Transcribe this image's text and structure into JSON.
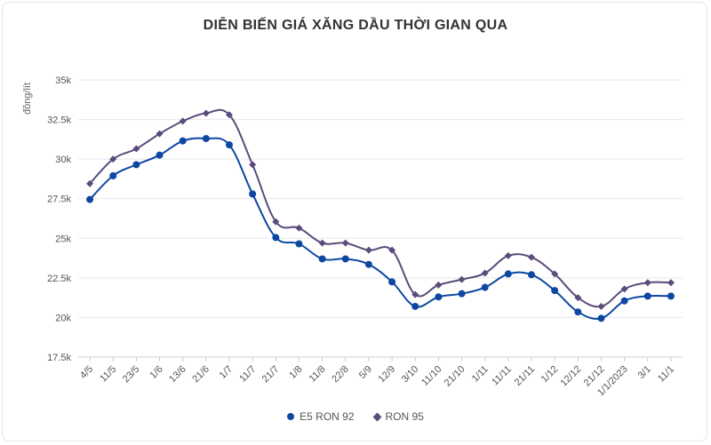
{
  "chart_data": {
    "type": "line",
    "title": "DIỄN BIẾN GIÁ XĂNG DẦU THỜI GIAN QUA",
    "ylabel": "đồng/lít",
    "xlabel": "",
    "ylim": [
      17500,
      35000
    ],
    "yticks": [
      17500,
      20000,
      22500,
      25000,
      27500,
      30000,
      32500,
      35000
    ],
    "ytick_labels": [
      "17.5k",
      "20k",
      "22.5k",
      "25k",
      "27.5k",
      "30k",
      "32.5k",
      "35k"
    ],
    "categories": [
      "4/5",
      "11/5",
      "23/5",
      "1/6",
      "13/6",
      "21/6",
      "1/7",
      "11/7",
      "21/7",
      "1/8",
      "11/8",
      "22/8",
      "5/9",
      "12/9",
      "3/10",
      "11/10",
      "21/10",
      "1/11",
      "11/11",
      "21/11",
      "1/12",
      "12/12",
      "21/12",
      "1/1/2023",
      "3/1",
      "11/1"
    ],
    "series": [
      {
        "name": "E5 RON 92",
        "color": "#0d47a1",
        "marker": "circle",
        "values": [
          27450,
          28950,
          29650,
          30250,
          31150,
          31300,
          30900,
          27800,
          25050,
          24650,
          23700,
          23700,
          23350,
          22250,
          20700,
          21300,
          21500,
          21900,
          22750,
          22700,
          21700,
          20350,
          19950,
          21050,
          21350,
          21350
        ]
      },
      {
        "name": "RON 95",
        "color": "#5b4b7c",
        "marker": "diamond",
        "values": [
          28450,
          30000,
          30650,
          31600,
          32400,
          32900,
          32800,
          29650,
          26050,
          25650,
          24700,
          24700,
          24250,
          24250,
          21450,
          22050,
          22400,
          22800,
          23900,
          23800,
          22750,
          21250,
          20700,
          21800,
          22200,
          22200
        ]
      }
    ],
    "grid": true,
    "legend_position": "bottom"
  }
}
